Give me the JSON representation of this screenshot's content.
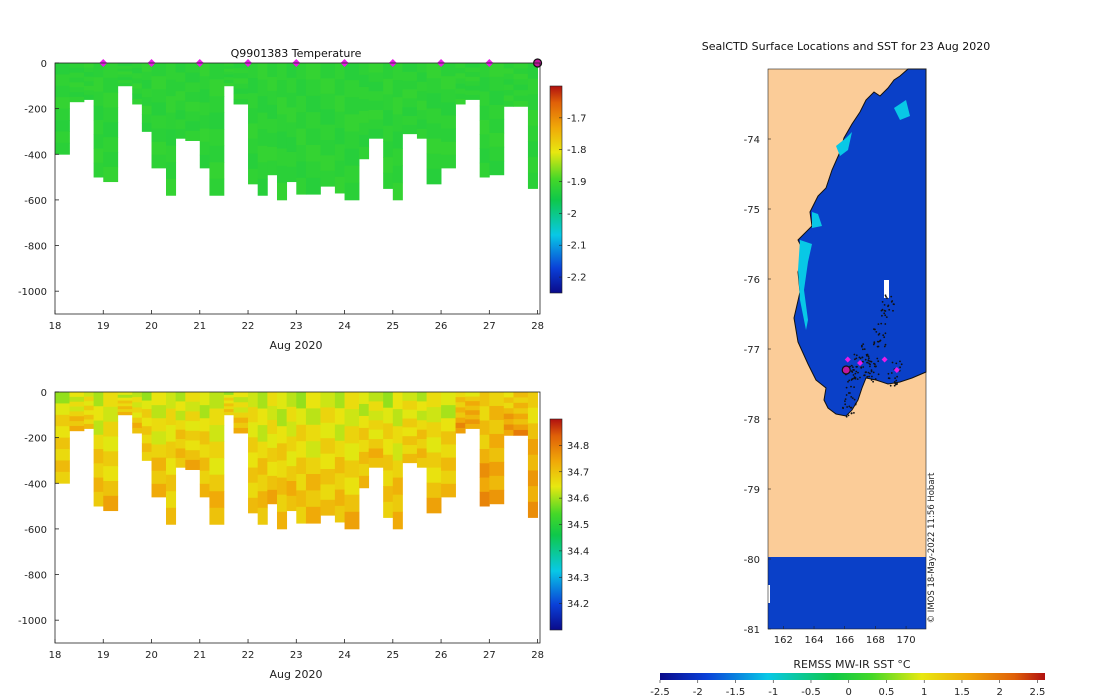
{
  "figure": {
    "background": "#ffffff"
  },
  "chart_data": [
    {
      "type": "heatmap",
      "name": "temperature-section",
      "title": "Q9901383  Temperature",
      "xlabel": "Aug 2020",
      "xlim": [
        18,
        28.05
      ],
      "ylim": [
        -1100,
        0
      ],
      "xticks": [
        "18",
        "19",
        "20",
        "21",
        "22",
        "23",
        "24",
        "25",
        "26",
        "27",
        "28"
      ],
      "yticks": [
        "0",
        "-200",
        "-400",
        "-600",
        "-800",
        "-1000"
      ],
      "colorbar": {
        "range": [
          -2.25,
          -1.6
        ],
        "ticks": [
          "-1.7",
          "-1.8",
          "-1.9",
          "-2",
          "-2.1",
          "-2.2"
        ]
      },
      "profile_days": [
        18.0,
        18.3,
        18.6,
        18.8,
        19.0,
        19.3,
        19.6,
        19.8,
        20.0,
        20.3,
        20.5,
        20.7,
        21.0,
        21.2,
        21.5,
        21.7,
        22.0,
        22.2,
        22.4,
        22.6,
        22.8,
        23.0,
        23.2,
        23.5,
        23.8,
        24.0,
        24.3,
        24.5,
        24.8,
        25.0,
        25.2,
        25.5,
        25.7,
        26.0,
        26.3,
        26.5,
        26.8,
        27.0,
        27.3,
        27.5,
        27.8,
        28.0
      ],
      "profile_depths": [
        400,
        170,
        160,
        500,
        520,
        100,
        180,
        300,
        460,
        580,
        330,
        340,
        460,
        580,
        100,
        180,
        530,
        580,
        490,
        600,
        520,
        575,
        575,
        540,
        570,
        600,
        420,
        330,
        550,
        600,
        310,
        330,
        530,
        460,
        180,
        160,
        500,
        490,
        190,
        190,
        550,
        0
      ],
      "value_surface": -1.92,
      "value_deep": -1.92,
      "surface_markers_days": [
        "19",
        "20",
        "21",
        "22",
        "23",
        "24",
        "25",
        "26",
        "27"
      ],
      "last_marker_day": "28"
    },
    {
      "type": "heatmap",
      "name": "salinity-section",
      "title": "",
      "xlabel": "Aug 2020",
      "xlim": [
        18,
        28.05
      ],
      "ylim": [
        -1100,
        0
      ],
      "xticks": [
        "18",
        "19",
        "20",
        "21",
        "22",
        "23",
        "24",
        "25",
        "26",
        "27",
        "28"
      ],
      "yticks": [
        "0",
        "-200",
        "-400",
        "-600",
        "-800",
        "-1000"
      ],
      "colorbar": {
        "range": [
          34.1,
          34.9
        ],
        "ticks": [
          "34.8",
          "34.7",
          "34.6",
          "34.5",
          "34.4",
          "34.3",
          "34.2"
        ]
      },
      "value_surface": 34.62,
      "value_deep": 34.72
    },
    {
      "type": "heatmap",
      "name": "sst-map",
      "title": "SealCTD Surface Locations and SST for 23 Aug 2020",
      "xlabel": "REMSS MW-IR SST °C",
      "xlim": [
        161,
        171.3
      ],
      "ylim": [
        -81,
        -73
      ],
      "xticks": [
        "162",
        "164",
        "166",
        "168",
        "170"
      ],
      "yticks": [
        "-74",
        "-75",
        "-76",
        "-77",
        "-78",
        "-79",
        "-80",
        "-81"
      ],
      "colorbar": {
        "range": [
          -2.5,
          2.6
        ],
        "ticks": [
          "-2.5",
          "-2",
          "-1.5",
          "-1",
          "-0.5",
          "0",
          "0.5",
          "1",
          "1.5",
          "2",
          "2.5"
        ]
      },
      "land_color": "#fbcc98",
      "ice_edge_south_lat": -80,
      "credit": "© IMOS 18-May-2022 11:56 Hobart"
    }
  ]
}
